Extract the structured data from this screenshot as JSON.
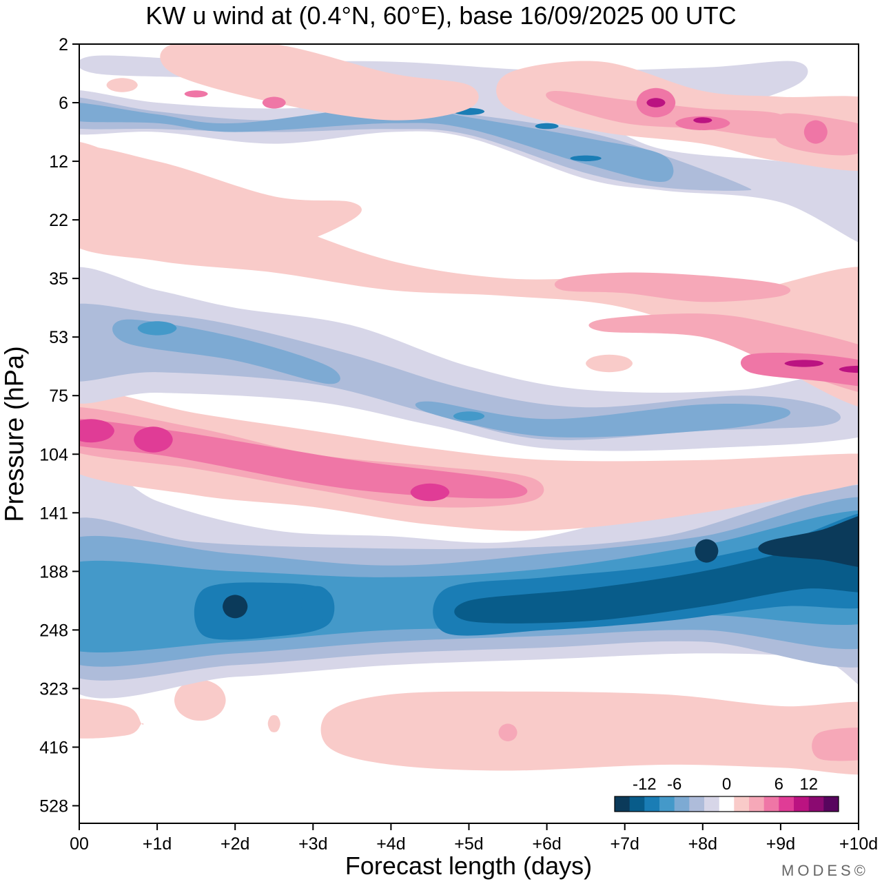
{
  "chart_data": {
    "type": "contour",
    "title": "KW u wind at (0.4°N, 60°E),  base 16/09/2025  00 UTC",
    "xlabel": "Forecast length (days)",
    "ylabel": "Pressure (hPa)",
    "x_ticks": [
      "00",
      "+1d",
      "+2d",
      "+3d",
      "+4d",
      "+5d",
      "+6d",
      "+7d",
      "+8d",
      "+9d",
      "+10d"
    ],
    "y_ticks": [
      "2",
      "6",
      "12",
      "22",
      "35",
      "53",
      "75",
      "104",
      "141",
      "188",
      "248",
      "323",
      "416",
      "528"
    ],
    "xlim_days": [
      0,
      10
    ],
    "ylim_hPa_levels": [
      2,
      528
    ],
    "colorbar": {
      "labels": [
        "-12",
        "-6",
        "0",
        "6",
        "12"
      ],
      "label_values": [
        -12,
        -6,
        0,
        6,
        12
      ],
      "levels": [
        -18,
        -15,
        -12,
        -9,
        -6,
        -4.5,
        -3,
        -1.5,
        1.5,
        3,
        4.5,
        6,
        9,
        12,
        15,
        18
      ],
      "colors": [
        "#0b3a5a",
        "#085c8a",
        "#1a7db5",
        "#4499c9",
        "#7daad3",
        "#aebcda",
        "#d7d6e8",
        "#ffffff",
        "#f9cbc9",
        "#f6a8b8",
        "#ef76a6",
        "#e03c96",
        "#bb1381",
        "#8b0a71",
        "#58055e"
      ]
    },
    "features": [
      {
        "name": "upper easterly band",
        "sign": "negative",
        "days": [
          0,
          6.5
        ],
        "pressure_hPa": [
          6,
          12
        ],
        "peak": -12
      },
      {
        "name": "upper westerly patches",
        "sign": "positive",
        "days": [
          6,
          10
        ],
        "pressure_hPa": [
          4,
          10
        ],
        "peak": 15
      },
      {
        "name": "mid easterly band",
        "sign": "negative",
        "days": [
          0,
          10
        ],
        "pressure_hPa": [
          35,
          90
        ],
        "peak": -9
      },
      {
        "name": "westerly jet",
        "sign": "positive",
        "days": [
          0,
          5.5
        ],
        "pressure_hPa": [
          75,
          130
        ],
        "peak": 12
      },
      {
        "name": "upper-tropospheric easterly jet",
        "sign": "negative",
        "days": [
          0,
          10
        ],
        "pressure_hPa": [
          130,
          260
        ],
        "peak": -18
      },
      {
        "name": "lower westerly band",
        "sign": "positive",
        "days": [
          0,
          10
        ],
        "pressure_hPa": [
          300,
          480
        ],
        "peak": 3
      }
    ]
  },
  "credit": "MODES©",
  "colorbar_colors_note": "diverging blue-white-pink palette"
}
